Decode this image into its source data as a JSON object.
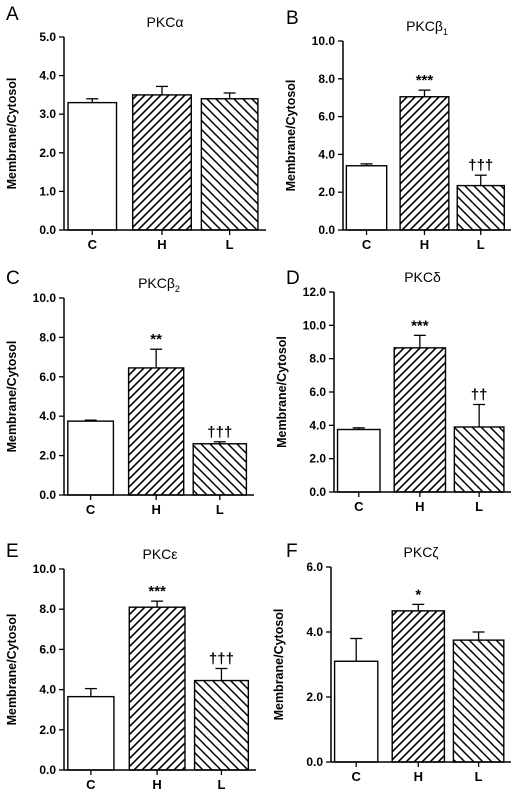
{
  "ylabel": "Membrane/Cytosol",
  "categories": [
    "C",
    "H",
    "L"
  ],
  "fills": [
    "open",
    "hatched",
    "hatched-reverse"
  ],
  "chart_data": [
    {
      "type": "bar",
      "panel": "A",
      "title": "PKCα",
      "categories": [
        "C",
        "H",
        "L"
      ],
      "values": [
        3.3,
        3.5,
        3.4
      ],
      "errors": [
        0.1,
        0.22,
        0.15
      ],
      "ylim": [
        0,
        5
      ],
      "yticks": [
        "0.0",
        "1.0",
        "2.0",
        "3.0",
        "4.0",
        "5.0"
      ],
      "significance": [
        "",
        "",
        ""
      ]
    },
    {
      "type": "bar",
      "panel": "B",
      "title": "PKCβ1",
      "title_main": "PKCβ",
      "title_sub": "1",
      "categories": [
        "C",
        "H",
        "L"
      ],
      "values": [
        3.4,
        7.05,
        2.35
      ],
      "errors": [
        0.1,
        0.35,
        0.55
      ],
      "ylim": [
        0,
        10
      ],
      "yticks": [
        "0.0",
        "2.0",
        "4.0",
        "6.0",
        "8.0",
        "10.0"
      ],
      "significance": [
        "",
        "***",
        "†††"
      ]
    },
    {
      "type": "bar",
      "panel": "C",
      "title": "PKCβ2",
      "title_main": "PKCβ",
      "title_sub": "2",
      "categories": [
        "C",
        "H",
        "L"
      ],
      "values": [
        3.75,
        6.45,
        2.6
      ],
      "errors": [
        0.05,
        0.95,
        0.1
      ],
      "ylim": [
        0,
        10
      ],
      "yticks": [
        "0.0",
        "2.0",
        "4.0",
        "6.0",
        "8.0",
        "10.0"
      ],
      "significance": [
        "",
        "**",
        "†††"
      ]
    },
    {
      "type": "bar",
      "panel": "D",
      "title": "PKCδ",
      "categories": [
        "C",
        "H",
        "L"
      ],
      "values": [
        3.75,
        8.65,
        3.9
      ],
      "errors": [
        0.1,
        0.75,
        1.35
      ],
      "ylim": [
        0,
        12
      ],
      "yticks": [
        "0.0",
        "2.0",
        "4.0",
        "6.0",
        "8.0",
        "10.0",
        "12.0"
      ],
      "significance": [
        "",
        "***",
        "††"
      ]
    },
    {
      "type": "bar",
      "panel": "E",
      "title": "PKCε",
      "categories": [
        "C",
        "H",
        "L"
      ],
      "values": [
        3.65,
        8.1,
        4.45
      ],
      "errors": [
        0.4,
        0.3,
        0.6
      ],
      "ylim": [
        0,
        10
      ],
      "yticks": [
        "0.0",
        "2.0",
        "4.0",
        "6.0",
        "8.0",
        "10.0"
      ],
      "significance": [
        "",
        "***",
        "†††"
      ]
    },
    {
      "type": "bar",
      "panel": "F",
      "title": "PKCζ",
      "categories": [
        "C",
        "H",
        "L"
      ],
      "values": [
        3.1,
        4.65,
        3.75
      ],
      "errors": [
        0.7,
        0.2,
        0.25
      ],
      "ylim": [
        0,
        6
      ],
      "yticks": [
        "0.0",
        "2.0",
        "4.0",
        "6.0"
      ],
      "significance": [
        "",
        "*",
        ""
      ]
    }
  ]
}
